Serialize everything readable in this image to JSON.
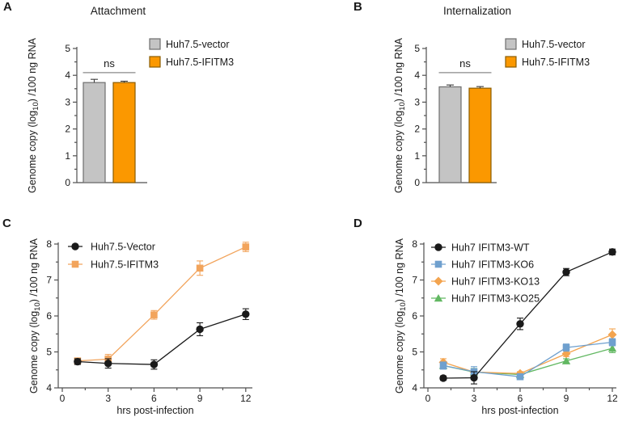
{
  "figure": {
    "background": "#ffffff"
  },
  "chart_data": [
    {
      "panel": "A",
      "type": "bar",
      "title": "Attachment",
      "ylabel": "Genome copy (log10) /100 ng RNA",
      "xlabel": "",
      "ylim": [
        0,
        5
      ],
      "yticks": [
        0,
        1,
        2,
        3,
        4,
        5
      ],
      "minor_tick_step": 0.5,
      "significance_label": "ns",
      "legend_position": "right",
      "bars": [
        {
          "label": "Huh7.5-vector",
          "value": 3.73,
          "error": 0.12,
          "fill": "#c4c4c4",
          "stroke": "#6e6e6e"
        },
        {
          "label": "Huh7.5-IFITM3",
          "value": 3.73,
          "error": 0.05,
          "fill": "#fb9800",
          "stroke": "#8a5c00"
        }
      ]
    },
    {
      "panel": "B",
      "type": "bar",
      "title": "Internalization",
      "ylabel": "Genome copy (log10) /100 ng RNA",
      "xlabel": "",
      "ylim": [
        0,
        5
      ],
      "yticks": [
        0,
        1,
        2,
        3,
        4,
        5
      ],
      "minor_tick_step": 0.5,
      "significance_label": "ns",
      "legend_position": "right",
      "bars": [
        {
          "label": "Huh7.5-vector",
          "value": 3.57,
          "error": 0.07,
          "fill": "#c4c4c4",
          "stroke": "#6e6e6e"
        },
        {
          "label": "Huh7.5-IFITM3",
          "value": 3.52,
          "error": 0.06,
          "fill": "#fb9800",
          "stroke": "#8a5c00"
        }
      ]
    },
    {
      "panel": "C",
      "type": "line",
      "title": "",
      "ylabel": "Genome copy (log10) /100 ng RNA",
      "xlabel": "hrs post-infection",
      "ylim": [
        4,
        8
      ],
      "yticks": [
        4,
        5,
        6,
        7,
        8
      ],
      "xlim": [
        0,
        12.5
      ],
      "xticks": [
        0,
        3,
        6,
        9,
        12
      ],
      "minor_tick_step": 0.5,
      "x": [
        1,
        3,
        6,
        9,
        12
      ],
      "legend_position": "top-left",
      "series": [
        {
          "name": "Huh7.5-Vector",
          "marker": "circle",
          "color": "#1a1a1a",
          "values": [
            4.73,
            4.68,
            4.65,
            5.63,
            6.05
          ],
          "errors": [
            0.08,
            0.13,
            0.13,
            0.18,
            0.15
          ]
        },
        {
          "name": "Huh7.5-IFITM3",
          "marker": "square",
          "color": "#f2a45c",
          "values": [
            4.75,
            4.8,
            6.03,
            7.33,
            7.92
          ],
          "errors": [
            0.07,
            0.13,
            0.12,
            0.2,
            0.13
          ]
        }
      ]
    },
    {
      "panel": "D",
      "type": "line",
      "title": "",
      "ylabel": "Genome copy (log10) /100 ng RNA",
      "xlabel": "hrs post-infection",
      "ylim": [
        4,
        8
      ],
      "yticks": [
        4,
        5,
        6,
        7,
        8
      ],
      "xlim": [
        0,
        12.5
      ],
      "xticks": [
        0,
        3,
        6,
        9,
        12
      ],
      "minor_tick_step": 0.5,
      "x": [
        1,
        3,
        6,
        9,
        12
      ],
      "legend_position": "top-left",
      "series": [
        {
          "name": "Huh7 IFITM3-WT",
          "marker": "circle",
          "color": "#1a1a1a",
          "values": [
            4.27,
            4.28,
            5.78,
            7.22,
            7.78
          ],
          "errors": [
            0.06,
            0.17,
            0.16,
            0.1,
            0.08
          ]
        },
        {
          "name": "Huh7 IFITM3-KO6",
          "marker": "square",
          "color": "#6fa0ce",
          "values": [
            4.62,
            4.45,
            4.31,
            5.12,
            5.27
          ],
          "errors": [
            0.1,
            0.14,
            0.08,
            0.1,
            0.1
          ]
        },
        {
          "name": "Huh7 IFITM3-KO13",
          "marker": "diamond",
          "color": "#f3a44f",
          "values": [
            4.71,
            4.44,
            4.4,
            4.95,
            5.48
          ],
          "errors": [
            0.1,
            0.08,
            0.05,
            0.08,
            0.16
          ]
        },
        {
          "name": "Huh7 IFITM3-KO25",
          "marker": "triangle",
          "color": "#62b862",
          "values": [
            4.62,
            4.44,
            4.37,
            4.75,
            5.1
          ],
          "errors": [
            0.08,
            0.1,
            0.05,
            0.06,
            0.12
          ]
        }
      ]
    }
  ]
}
